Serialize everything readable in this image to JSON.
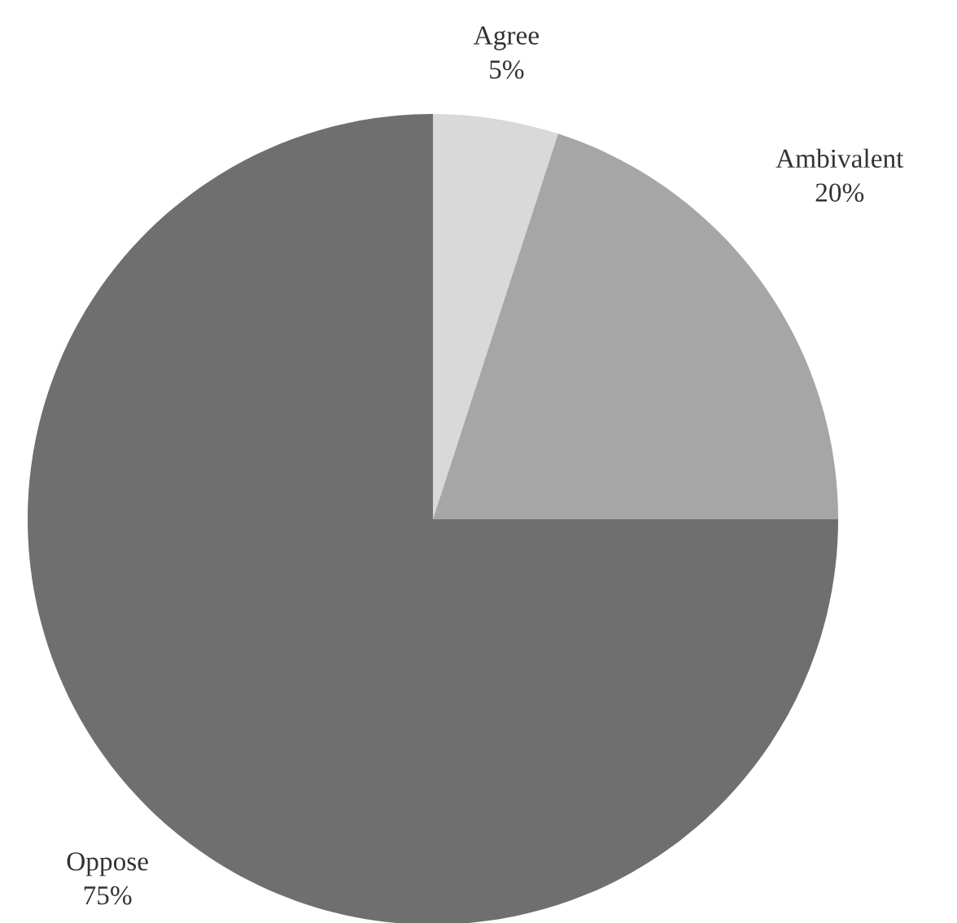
{
  "chart_data": {
    "type": "pie",
    "categories": [
      "Agree",
      "Ambivalent",
      "Oppose"
    ],
    "values": [
      5,
      20,
      75
    ],
    "value_labels": [
      "5%",
      "20%",
      "75%"
    ],
    "colors": [
      "#d9d9d9",
      "#a6a6a6",
      "#6f6f6f"
    ]
  }
}
